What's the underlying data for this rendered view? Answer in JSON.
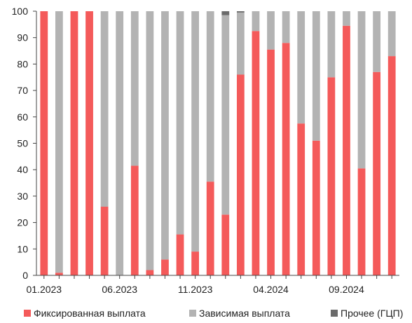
{
  "chart_data": {
    "type": "bar",
    "stacked": true,
    "title": "",
    "xlabel": "",
    "ylabel": "",
    "ylim": [
      0,
      100
    ],
    "y_ticks": [
      0,
      10,
      20,
      30,
      40,
      50,
      60,
      70,
      80,
      90,
      100
    ],
    "grid": false,
    "legend_position": "bottom",
    "categories": [
      "01.2023",
      "02.2023",
      "03.2023",
      "04.2023",
      "05.2023",
      "06.2023",
      "07.2023",
      "08.2023",
      "09.2023",
      "10.2023",
      "11.2023",
      "12.2023",
      "01.2024",
      "02.2024",
      "03.2024",
      "04.2024",
      "05.2024",
      "06.2024",
      "07.2024",
      "08.2024",
      "09.2024",
      "10.2024",
      "11.2024",
      "12.2024"
    ],
    "x_tick_labels": [
      {
        "index": 0,
        "label": "01.2023"
      },
      {
        "index": 5,
        "label": "06.2023"
      },
      {
        "index": 10,
        "label": "11.2023"
      },
      {
        "index": 15,
        "label": "04.2024"
      },
      {
        "index": 20,
        "label": "09.2024"
      }
    ],
    "series": [
      {
        "name": "Фиксированная выплата",
        "color": "#f45a5a",
        "values": [
          100,
          1,
          100,
          100,
          26,
          0,
          41.5,
          2,
          6,
          15.5,
          9,
          35.5,
          23,
          76,
          92.5,
          85.5,
          88,
          57.5,
          51,
          75,
          94.5,
          40.5,
          77,
          83
        ]
      },
      {
        "name": "Зависимая выплата",
        "color": "#b3b3b3",
        "values": [
          0,
          99,
          0,
          0,
          74,
          100,
          58.5,
          98,
          94,
          84.5,
          91,
          64.5,
          75.5,
          23.5,
          7.5,
          14.5,
          12,
          42.5,
          49,
          25,
          5.5,
          59.5,
          23,
          17
        ]
      },
      {
        "name": "Прочее (ГЦП)",
        "color": "#6b6b6b",
        "values": [
          0,
          0,
          0,
          0,
          0,
          0,
          0,
          0,
          0,
          0,
          0,
          0,
          1.5,
          0.5,
          0,
          0,
          0,
          0,
          0,
          0,
          0,
          0,
          0,
          0
        ]
      }
    ]
  }
}
